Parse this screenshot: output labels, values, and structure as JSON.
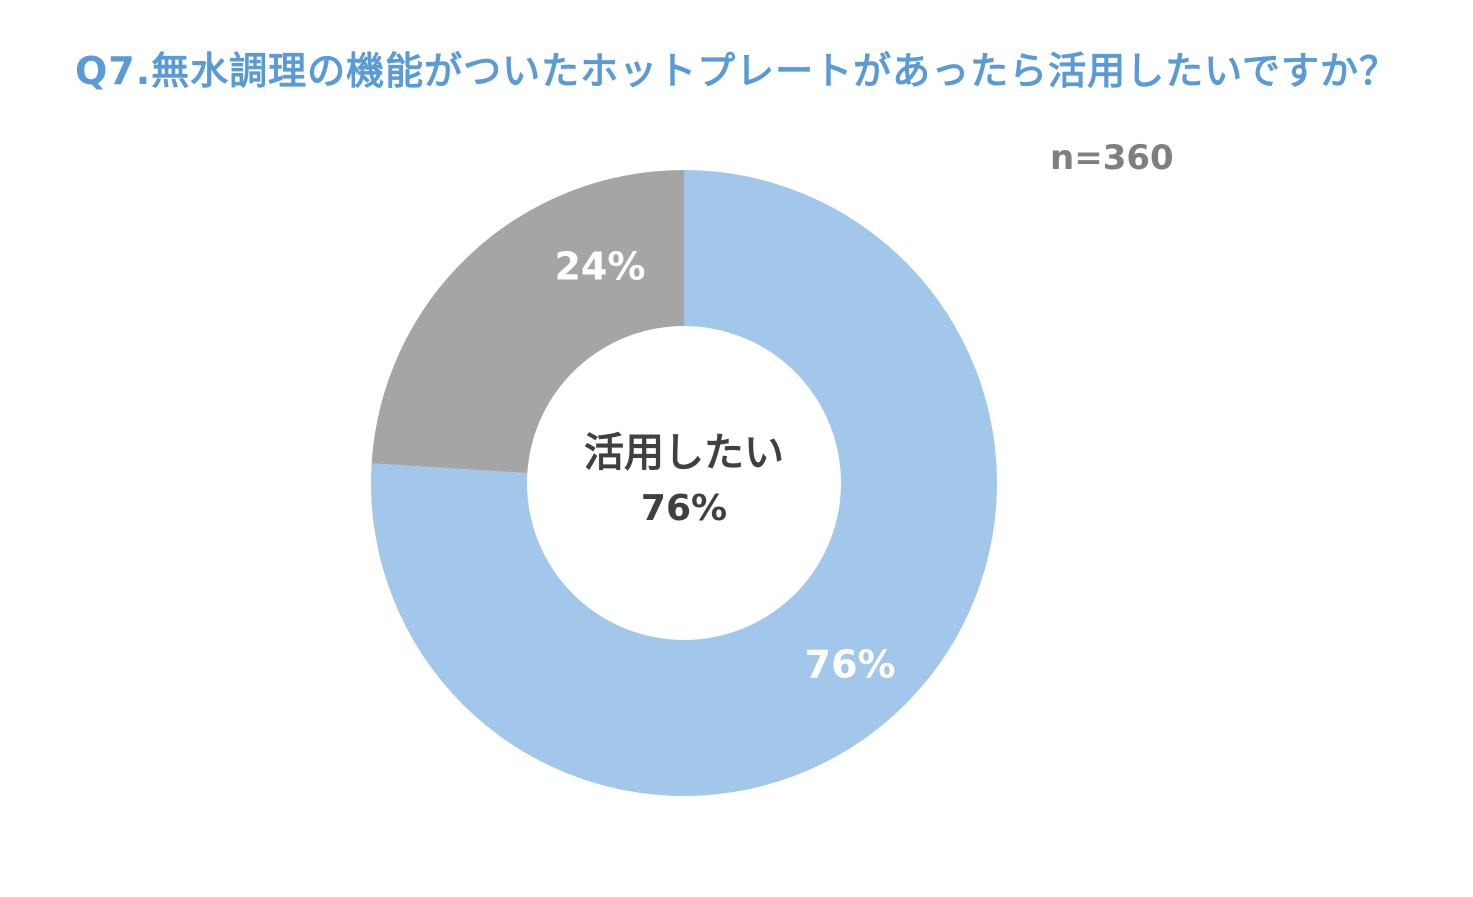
{
  "chart_data": {
    "type": "pie",
    "title": "Q7.無水調理の機能がついたホットプレートがあったら活用したいですか？",
    "note": "n=360",
    "center_label": "活用したい",
    "center_value": "76%",
    "slices": [
      {
        "name": "活用したい",
        "value": 76,
        "label": "76%",
        "color": "#a3c7ea"
      },
      {
        "value": 24,
        "label": "24%",
        "color": "#a5a5a5"
      }
    ]
  }
}
